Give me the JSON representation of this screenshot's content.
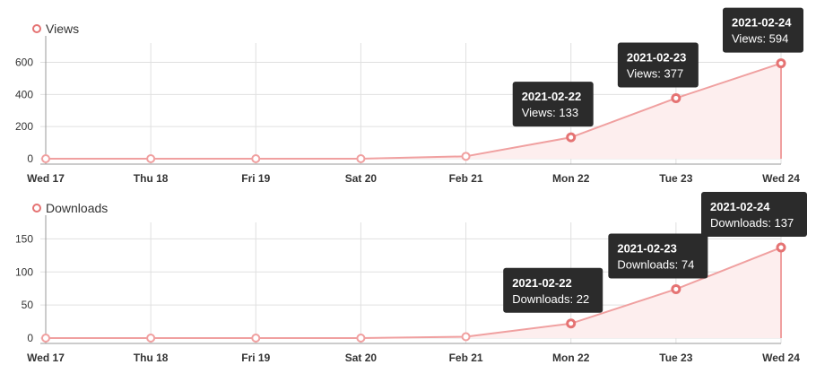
{
  "colors": {
    "line": "#f0a0a0",
    "fill": "#fdeeee",
    "point": "#e57373",
    "grid": "#e0e0e0",
    "axis": "#999999",
    "tooltip_bg": "#2b2b2b"
  },
  "chart_data": [
    {
      "type": "area",
      "x": [
        "Wed 17",
        "Thu 18",
        "Fri 19",
        "Sat 20",
        "Feb 21",
        "Mon 22",
        "Tue 23",
        "Wed 24"
      ],
      "series": [
        {
          "name": "Views",
          "values": [
            0,
            0,
            0,
            0,
            15,
            133,
            377,
            594
          ]
        }
      ],
      "ylim": [
        0,
        720
      ],
      "yticks": [
        0,
        200,
        400,
        600
      ],
      "grid": true,
      "legend": "top-left",
      "tooltips": [
        {
          "index": 5,
          "title": "2021-02-22",
          "body": "Views: 133"
        },
        {
          "index": 6,
          "title": "2021-02-23",
          "body": "Views: 377"
        },
        {
          "index": 7,
          "title": "2021-02-24",
          "body": "Views: 594"
        }
      ]
    },
    {
      "type": "area",
      "x": [
        "Wed 17",
        "Thu 18",
        "Fri 19",
        "Sat 20",
        "Feb 21",
        "Mon 22",
        "Tue 23",
        "Wed 24"
      ],
      "series": [
        {
          "name": "Downloads",
          "values": [
            0,
            0,
            0,
            0,
            2,
            22,
            74,
            137
          ]
        }
      ],
      "ylim": [
        0,
        175
      ],
      "yticks": [
        0,
        50,
        100,
        150
      ],
      "grid": true,
      "legend": "top-left",
      "tooltips": [
        {
          "index": 5,
          "title": "2021-02-22",
          "body": "Downloads: 22"
        },
        {
          "index": 6,
          "title": "2021-02-23",
          "body": "Downloads: 74"
        },
        {
          "index": 7,
          "title": "2021-02-24",
          "body": "Downloads: 137"
        }
      ]
    }
  ]
}
